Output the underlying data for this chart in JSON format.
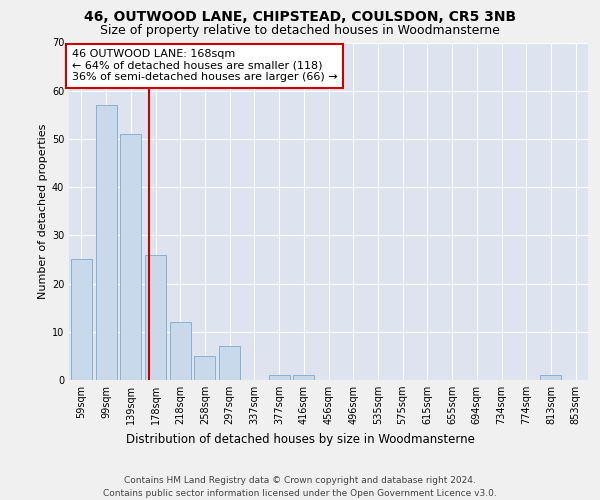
{
  "title1": "46, OUTWOOD LANE, CHIPSTEAD, COULSDON, CR5 3NB",
  "title2": "Size of property relative to detached houses in Woodmansterne",
  "xlabel": "Distribution of detached houses by size in Woodmansterne",
  "ylabel": "Number of detached properties",
  "categories": [
    "59sqm",
    "99sqm",
    "139sqm",
    "178sqm",
    "218sqm",
    "258sqm",
    "297sqm",
    "337sqm",
    "377sqm",
    "416sqm",
    "456sqm",
    "496sqm",
    "535sqm",
    "575sqm",
    "615sqm",
    "655sqm",
    "694sqm",
    "734sqm",
    "774sqm",
    "813sqm",
    "853sqm"
  ],
  "values": [
    25,
    57,
    51,
    26,
    12,
    5,
    7,
    0,
    1,
    1,
    0,
    0,
    0,
    0,
    0,
    0,
    0,
    0,
    0,
    1,
    0
  ],
  "bar_color": "#c9d9ec",
  "bar_edge_color": "#8ab0d0",
  "bar_linewidth": 0.7,
  "vline_color": "#cc0000",
  "vline_pos": 2.72,
  "annotation_lines": [
    "46 OUTWOOD LANE: 168sqm",
    "← 64% of detached houses are smaller (118)",
    "36% of semi-detached houses are larger (66) →"
  ],
  "annotation_box_color": "#cc0000",
  "ylim": [
    0,
    70
  ],
  "yticks": [
    0,
    10,
    20,
    30,
    40,
    50,
    60,
    70
  ],
  "fig_bg_color": "#f0f0f0",
  "axes_bg_color": "#dde4f0",
  "footer": "Contains HM Land Registry data © Crown copyright and database right 2024.\nContains public sector information licensed under the Open Government Licence v3.0.",
  "title1_fontsize": 10,
  "title2_fontsize": 9,
  "xlabel_fontsize": 8.5,
  "ylabel_fontsize": 8,
  "tick_fontsize": 7,
  "annotation_fontsize": 8,
  "footer_fontsize": 6.5
}
